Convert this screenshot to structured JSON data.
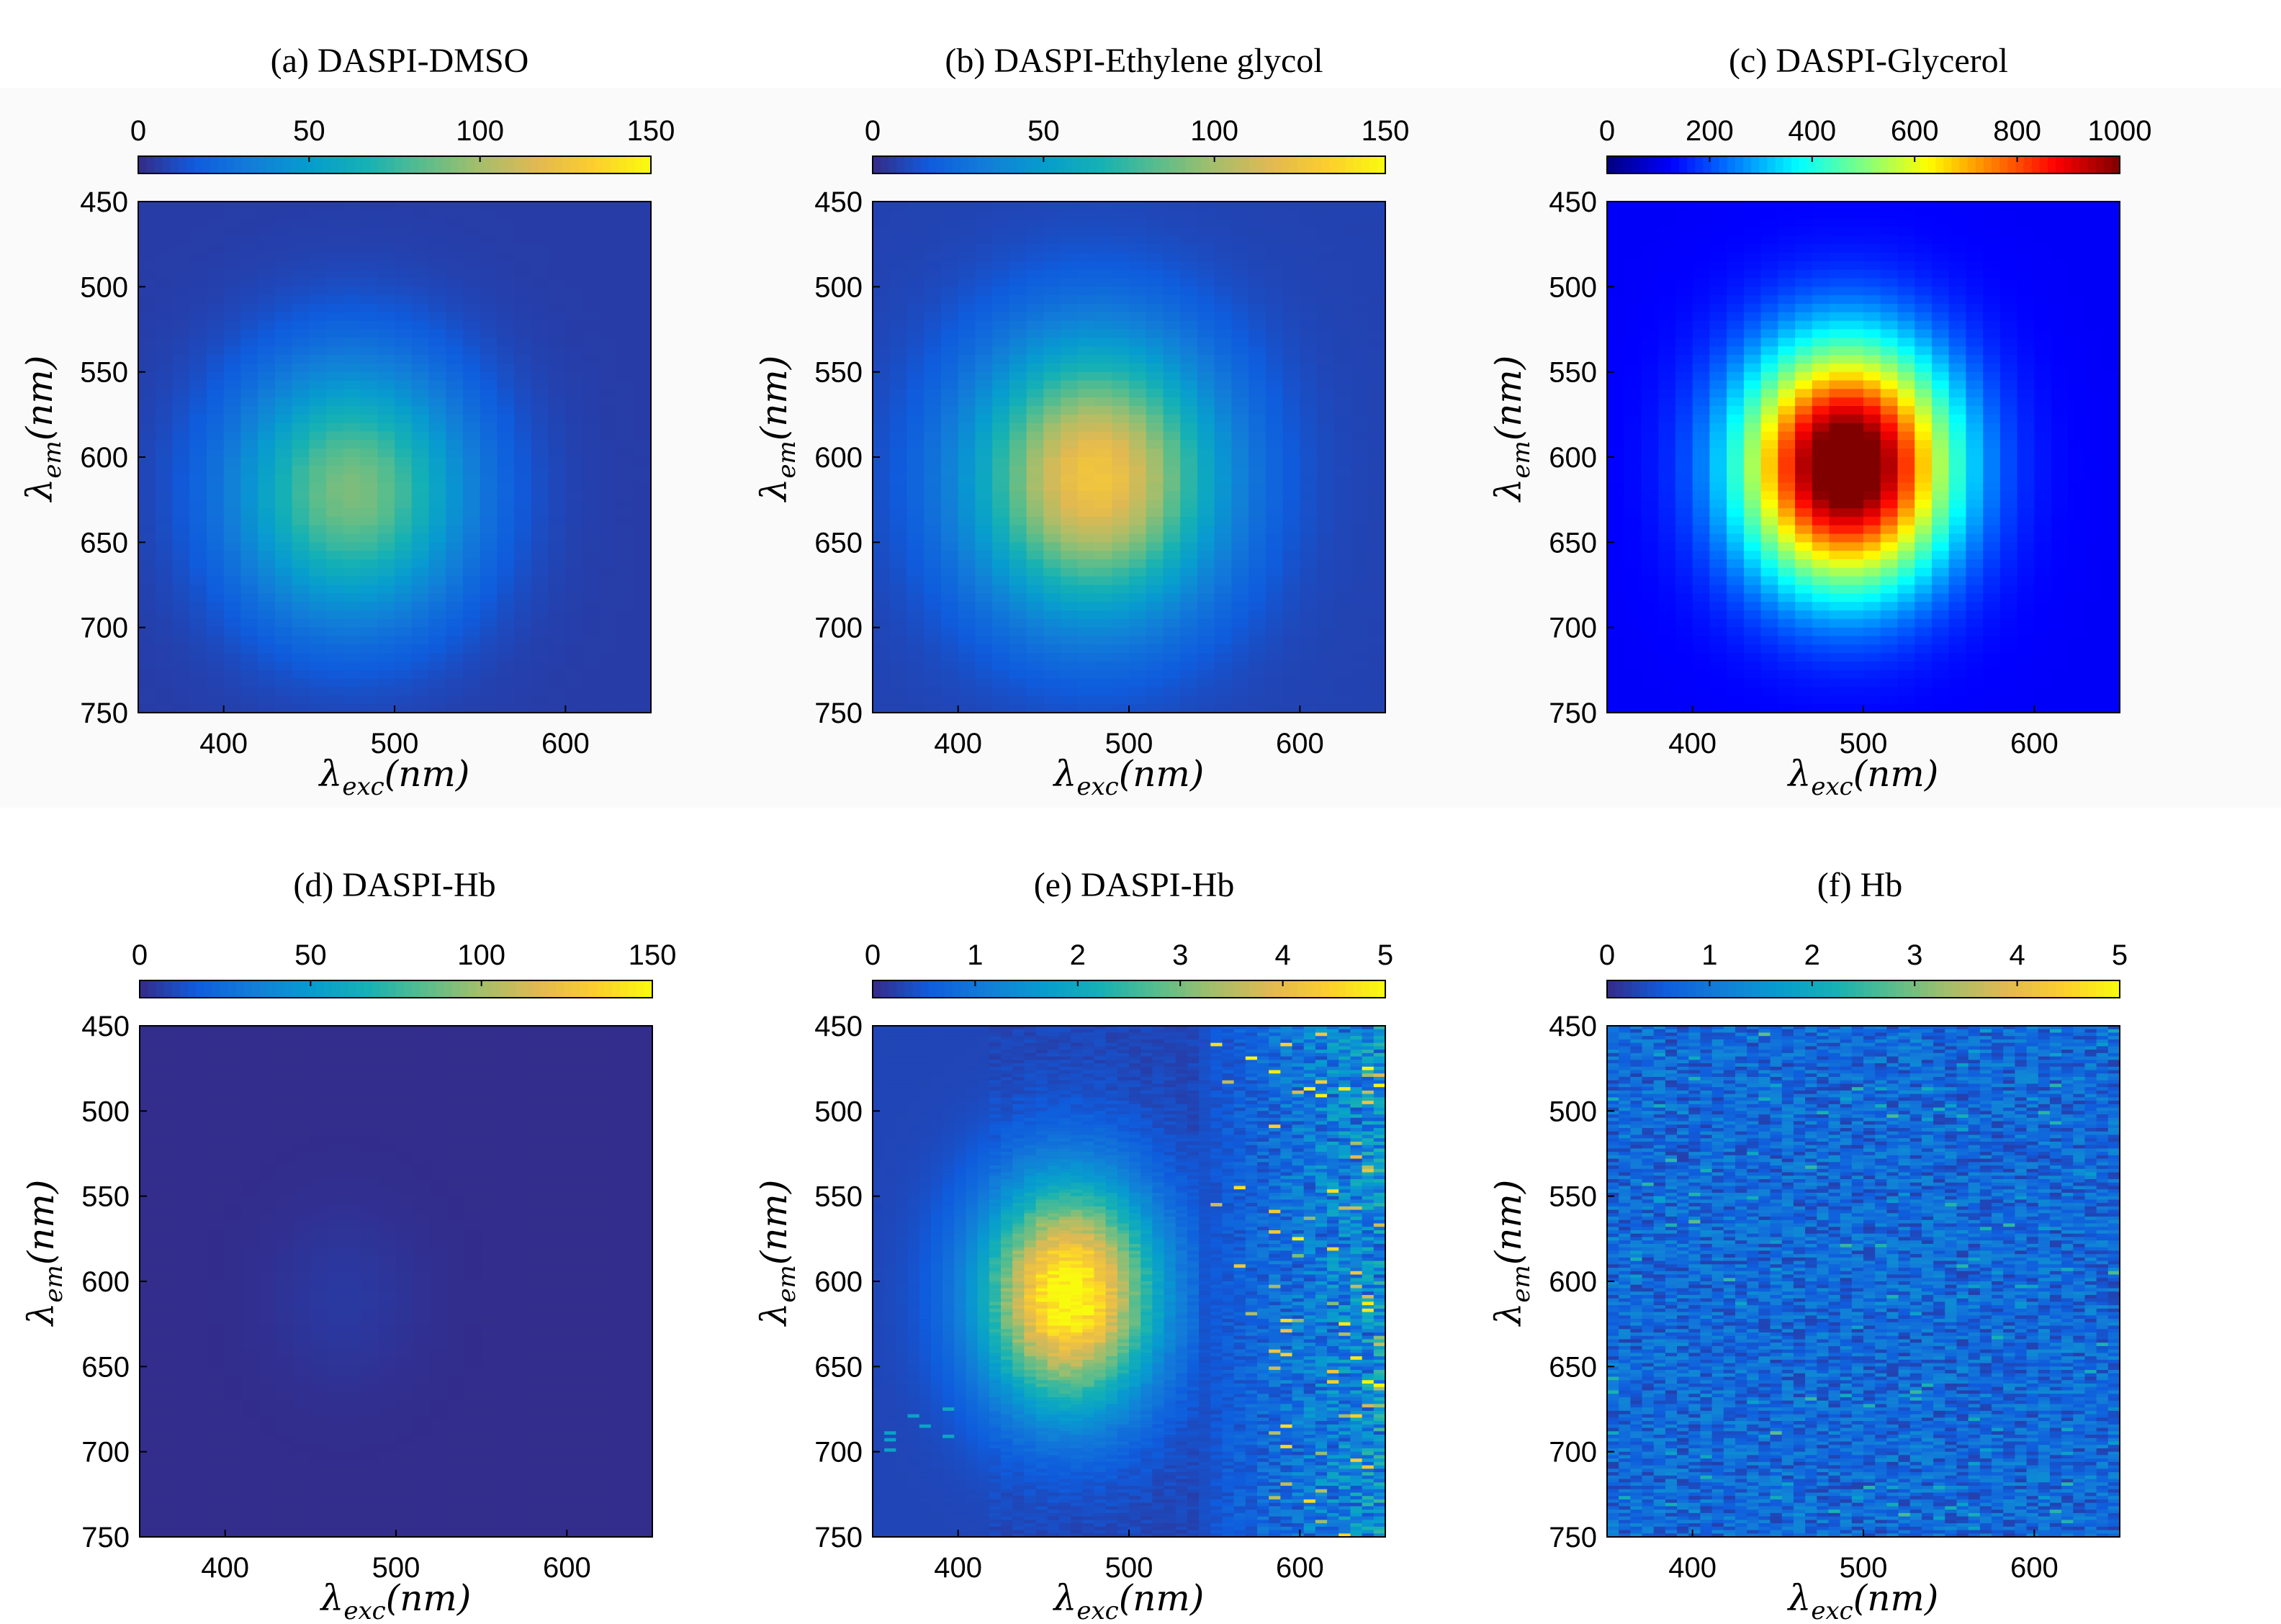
{
  "chart_data": [
    {
      "type": "heatmap",
      "title": "(a) DASPI-DMSO",
      "xlabel": {
        "symbol": "λ",
        "subscript": "exc",
        "unit": "(nm)"
      },
      "ylabel": {
        "symbol": "λ",
        "subscript": "em",
        "unit": "(nm)"
      },
      "xlim": [
        350,
        650
      ],
      "ylim": [
        450,
        750
      ],
      "xticks": [
        "400",
        "500",
        "600"
      ],
      "xtick_values": [
        400,
        500,
        600
      ],
      "yticks": [
        "450",
        "500",
        "550",
        "600",
        "650",
        "700",
        "750"
      ],
      "ytick_values": [
        450,
        500,
        550,
        600,
        650,
        700,
        750
      ],
      "colormap": "parula",
      "clim": [
        0,
        150
      ],
      "cbticks": [
        "0",
        "50",
        "100",
        "150"
      ],
      "cbtick_values": [
        0,
        50,
        100,
        150
      ],
      "peak": {
        "x": 475,
        "y": 620,
        "value": 85
      },
      "spread": {
        "sx": 48,
        "sy": 52
      },
      "background": 6,
      "noise": 0.01,
      "noise_region": "none"
    },
    {
      "type": "heatmap",
      "title": "(b) DASPI-Ethylene glycol",
      "xlabel": {
        "symbol": "λ",
        "subscript": "exc",
        "unit": "(nm)"
      },
      "ylabel": {
        "symbol": "λ",
        "subscript": "em",
        "unit": "(nm)"
      },
      "xlim": [
        350,
        650
      ],
      "ylim": [
        450,
        750
      ],
      "xticks": [
        "400",
        "500",
        "600"
      ],
      "xtick_values": [
        400,
        500,
        600
      ],
      "yticks": [
        "450",
        "500",
        "550",
        "600",
        "650",
        "700",
        "750"
      ],
      "ytick_values": [
        450,
        500,
        550,
        600,
        650,
        700,
        750
      ],
      "colormap": "parula",
      "clim": [
        0,
        150
      ],
      "cbticks": [
        "0",
        "50",
        "100",
        "150"
      ],
      "cbtick_values": [
        0,
        50,
        100,
        150
      ],
      "peak": {
        "x": 480,
        "y": 612,
        "value": 118
      },
      "spread": {
        "sx": 50,
        "sy": 55
      },
      "background": 8,
      "noise": 0.01,
      "noise_region": "none"
    },
    {
      "type": "heatmap",
      "title": "(c) DASPI-Glycerol",
      "xlabel": {
        "symbol": "λ",
        "subscript": "exc",
        "unit": "(nm)"
      },
      "ylabel": {
        "symbol": "λ",
        "subscript": "em",
        "unit": "(nm)"
      },
      "xlim": [
        350,
        650
      ],
      "ylim": [
        450,
        750
      ],
      "xticks": [
        "400",
        "500",
        "600"
      ],
      "xtick_values": [
        400,
        500,
        600
      ],
      "yticks": [
        "450",
        "500",
        "550",
        "600",
        "650",
        "700",
        "750"
      ],
      "ytick_values": [
        450,
        500,
        550,
        600,
        650,
        700,
        750
      ],
      "colormap": "jet",
      "clim": [
        0,
        1000
      ],
      "cbticks": [
        "0",
        "200",
        "400",
        "600",
        "800",
        "1000"
      ],
      "cbtick_values": [
        0,
        200,
        400,
        600,
        800,
        1000
      ],
      "peak": {
        "x": 490,
        "y": 605,
        "value": 990
      },
      "spread": {
        "sx": 42,
        "sy": 48
      },
      "background": 120,
      "noise": 0.0,
      "noise_region": "none"
    },
    {
      "type": "heatmap",
      "title": "(d) DASPI-Hb",
      "xlabel": {
        "symbol": "λ",
        "subscript": "exc",
        "unit": "(nm)"
      },
      "ylabel": {
        "symbol": "λ",
        "subscript": "em",
        "unit": "(nm)"
      },
      "xlim": [
        350,
        650
      ],
      "ylim": [
        450,
        750
      ],
      "xticks": [
        "400",
        "500",
        "600"
      ],
      "xtick_values": [
        400,
        500,
        600
      ],
      "yticks": [
        "450",
        "500",
        "550",
        "600",
        "650",
        "700",
        "750"
      ],
      "ytick_values": [
        450,
        500,
        550,
        600,
        650,
        700,
        750
      ],
      "colormap": "parula",
      "clim": [
        0,
        150
      ],
      "cbticks": [
        "0",
        "50",
        "100",
        "150"
      ],
      "cbtick_values": [
        0,
        50,
        100,
        150
      ],
      "peak": {
        "x": 470,
        "y": 610,
        "value": 4
      },
      "spread": {
        "sx": 30,
        "sy": 35
      },
      "background": 1,
      "noise": 0.005,
      "noise_region": "none"
    },
    {
      "type": "heatmap",
      "title": "(e) DASPI-Hb",
      "xlabel": {
        "symbol": "λ",
        "subscript": "exc",
        "unit": "(nm)"
      },
      "ylabel": {
        "symbol": "λ",
        "subscript": "em",
        "unit": "(nm)"
      },
      "xlim": [
        350,
        650
      ],
      "ylim": [
        450,
        750
      ],
      "xticks": [
        "400",
        "500",
        "600"
      ],
      "xtick_values": [
        400,
        500,
        600
      ],
      "yticks": [
        "450",
        "500",
        "550",
        "600",
        "650",
        "700",
        "750"
      ],
      "ytick_values": [
        450,
        500,
        550,
        600,
        650,
        700,
        750
      ],
      "colormap": "parula",
      "clim": [
        0,
        5
      ],
      "cbticks": [
        "0",
        "1",
        "2",
        "3",
        "4",
        "5"
      ],
      "cbtick_values": [
        0,
        1,
        2,
        3,
        4,
        5
      ],
      "peak": {
        "x": 465,
        "y": 608,
        "value": 4.8
      },
      "spread": {
        "sx": 35,
        "sy": 45
      },
      "background": 0.3,
      "noise": 0.35,
      "noise_region": "right"
    },
    {
      "type": "heatmap",
      "title": "(f) Hb",
      "xlabel": {
        "symbol": "λ",
        "subscript": "exc",
        "unit": "(nm)"
      },
      "ylabel": {
        "symbol": "λ",
        "subscript": "em",
        "unit": "(nm)"
      },
      "xlim": [
        350,
        650
      ],
      "ylim": [
        450,
        750
      ],
      "xticks": [
        "400",
        "500",
        "600"
      ],
      "xtick_values": [
        400,
        500,
        600
      ],
      "yticks": [
        "450",
        "500",
        "550",
        "600",
        "650",
        "700",
        "750"
      ],
      "ytick_values": [
        450,
        500,
        550,
        600,
        650,
        700,
        750
      ],
      "colormap": "parula",
      "clim": [
        0,
        5
      ],
      "cbticks": [
        "0",
        "1",
        "2",
        "3",
        "4",
        "5"
      ],
      "cbtick_values": [
        0,
        1,
        2,
        3,
        4,
        5
      ],
      "peak": {
        "x": 500,
        "y": 600,
        "value": 0
      },
      "spread": {
        "sx": 40,
        "sy": 40
      },
      "background": 0.8,
      "noise": 0.25,
      "noise_region": "all"
    }
  ]
}
